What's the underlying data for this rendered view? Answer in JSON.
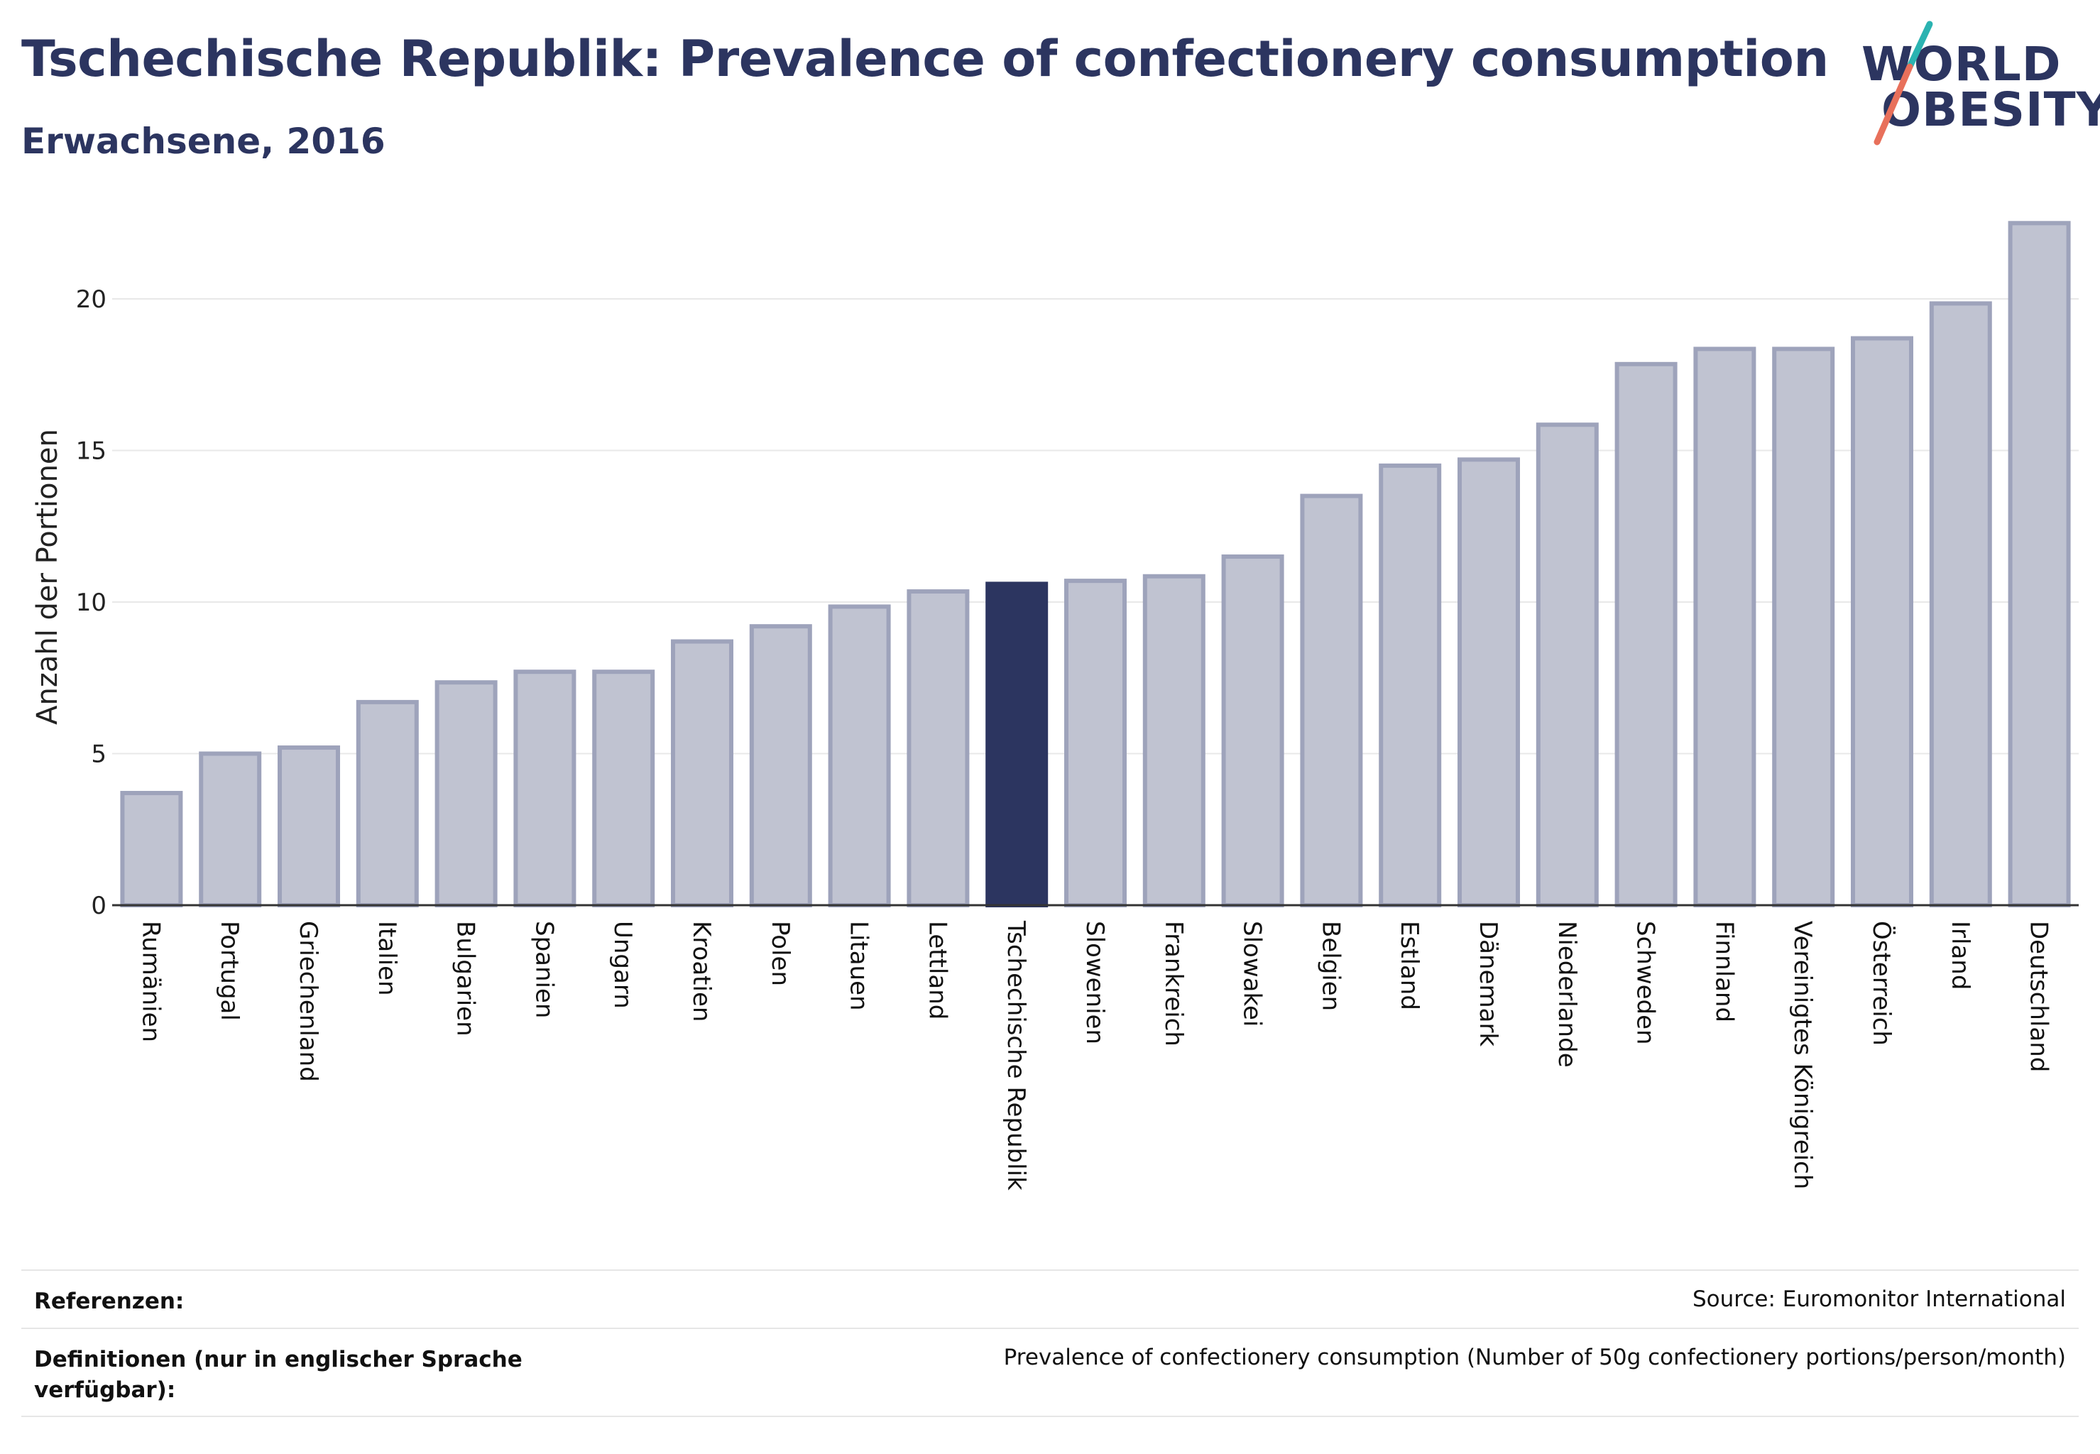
{
  "header": {
    "title": "Tschechische Republik: Prevalence of confectionery consumption",
    "subtitle": "Erwachsene, 2016"
  },
  "logo": {
    "line1": "WORLD",
    "line2": "OBESITY",
    "icon": "world-obesity-logo",
    "colors": {
      "text": "#2c3560",
      "slash_top": "#2bb3b1",
      "slash_bottom": "#e8705b"
    }
  },
  "colors": {
    "bar": "#c0c3d1",
    "bar_outline": "#9ea3bb",
    "highlight": "#2c3560",
    "grid": "#e8e8e8",
    "axis": "#333333"
  },
  "chart_data": {
    "type": "bar",
    "title": "Tschechische Republik: Prevalence of confectionery consumption",
    "subtitle": "Erwachsene, 2016",
    "xlabel": "",
    "ylabel": "Anzahl der Portionen",
    "ylim": [
      0,
      22.6
    ],
    "yticks": [
      0,
      5,
      10,
      15,
      20
    ],
    "grid": true,
    "highlight": "Tschechische Republik",
    "categories": [
      "Rumänien",
      "Portugal",
      "Griechenland",
      "Italien",
      "Bulgarien",
      "Spanien",
      "Ungarn",
      "Kroatien",
      "Polen",
      "Litauen",
      "Lettland",
      "Tschechische Republik",
      "Slowenien",
      "Frankreich",
      "Slowakei",
      "Belgien",
      "Estland",
      "Dänemark",
      "Niederlande",
      "Schweden",
      "Finnland",
      "Vereinigtes Königreich",
      "Österreich",
      "Irland",
      "Deutschland"
    ],
    "values": [
      3.7,
      5.0,
      5.2,
      6.7,
      7.35,
      7.7,
      7.7,
      8.7,
      9.2,
      9.85,
      10.35,
      10.6,
      10.7,
      10.85,
      11.5,
      13.5,
      14.5,
      14.7,
      15.85,
      17.85,
      18.35,
      18.35,
      18.7,
      19.85,
      22.5
    ]
  },
  "footer": {
    "references_label": "Referenzen:",
    "references_value": "Source: Euromonitor International",
    "definitions_label": "Definitionen (nur in englischer Sprache verfügbar):",
    "definitions_value": "Prevalence of confectionery consumption (Number of 50g confectionery portions/person/month)"
  }
}
